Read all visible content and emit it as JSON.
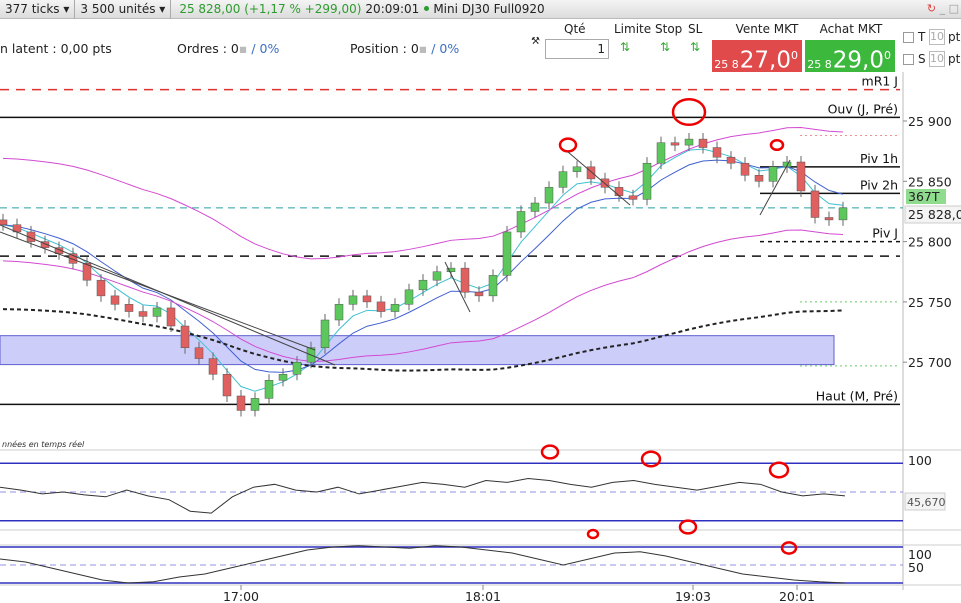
{
  "topbar": {
    "ticks": "377 ticks",
    "units": "3 500 unités",
    "quote": "25 828,00 (+1,17 % +299,00)",
    "time": "20:09:01",
    "instrument": "Mini DJ30 Full0920"
  },
  "infobar": {
    "latent": "n latent :  0,00 pts",
    "orders": "Ordres : 0",
    "orders_pct": "/ 0%",
    "position": "Position : 0",
    "position_pct": "/ 0%",
    "qty_label": "Qté",
    "qty_value": "1",
    "limit_label": "Limite",
    "stop_label": "Stop",
    "sl_label": "SL",
    "sell_label": "Vente MKT",
    "sell_prefix": "25 8",
    "sell_big": "27,0",
    "sell_sup": "0",
    "buy_label": "Achat MKT",
    "buy_prefix": "25 8",
    "buy_big": "29,0",
    "buy_sup": "0",
    "t_label": "T",
    "s_label": "S",
    "t_value": "10",
    "s_value": "10",
    "pts": "pt"
  },
  "colors": {
    "up": "#5cc85c",
    "down": "#e06060",
    "sell": "#e04a4a",
    "buy": "#3cb83c",
    "ma_pink": "#d24ad2",
    "ma_blue": "#4060d0",
    "ma_cyan": "#40c0d0",
    "zone": "#b8b8f8",
    "current": "#2aa0a0"
  },
  "chart_data": [
    {
      "type": "candlestick",
      "ylim": [
        25640,
        25955
      ],
      "y_ticks": [
        "25 900",
        "25 850",
        "25 800",
        "25 750",
        "25 700"
      ],
      "y_tick_values": [
        25900,
        25850,
        25800,
        25750,
        25700
      ],
      "x_ticks": [
        "17:00",
        "18:01",
        "19:03",
        "20:01"
      ],
      "closes": [
        25814,
        25808,
        25800,
        25795,
        25790,
        25782,
        25768,
        25755,
        25748,
        25742,
        25738,
        25745,
        25730,
        25712,
        25703,
        25690,
        25672,
        25660,
        25670,
        25685,
        25690,
        25700,
        25712,
        25735,
        25748,
        25755,
        25750,
        25742,
        25748,
        25760,
        25768,
        25775,
        25778,
        25758,
        25755,
        25772,
        25808,
        25825,
        25832,
        25845,
        25858,
        25862,
        25852,
        25845,
        25838,
        25835,
        25865,
        25882,
        25880,
        25885,
        25878,
        25870,
        25865,
        25855,
        25850,
        25862,
        25866,
        25842,
        25820,
        25818,
        25828
      ],
      "levels": [
        {
          "label": "mR1 J",
          "value": 25926,
          "color": "#e03030",
          "style": "dash"
        },
        {
          "label": "Ouv (J, Pré)",
          "value": 25903,
          "color": "#111",
          "style": "solid"
        },
        {
          "label": "Piv 1h",
          "value": 25862,
          "color": "#111",
          "style": "solid"
        },
        {
          "label": "Piv 2h",
          "value": 25840,
          "color": "#111",
          "style": "solid"
        },
        {
          "label": "Piv J",
          "value": 25800,
          "color": "#111",
          "style": "dot"
        },
        {
          "label": "",
          "value": 25788,
          "color": "#111",
          "style": "dash"
        },
        {
          "label": "Haut (M, Pré)",
          "value": 25665,
          "color": "#111",
          "style": "solid"
        }
      ],
      "zone": [
        25698,
        25722
      ],
      "current_price": "25 828,0",
      "current_value": 25828,
      "tick_badge": "367T",
      "note": "nnées en temps réel"
    },
    {
      "type": "line",
      "name": "",
      "ylim": [
        0,
        100
      ],
      "y_ticks": [
        "100"
      ],
      "value_label": "45,670",
      "values": [
        55,
        52,
        48,
        50,
        47,
        45,
        52,
        46,
        42,
        30,
        28,
        45,
        55,
        58,
        52,
        50,
        55,
        48,
        52,
        56,
        60,
        58,
        55,
        62,
        60,
        64,
        62,
        58,
        55,
        60,
        62,
        58,
        55,
        52,
        56,
        60,
        58,
        50,
        46,
        48,
        46
      ]
    },
    {
      "type": "line",
      "name": "",
      "ylim": [
        0,
        100
      ],
      "y_ticks": [
        "100",
        "50"
      ],
      "values": [
        60,
        55,
        45,
        35,
        25,
        20,
        22,
        30,
        35,
        45,
        55,
        65,
        75,
        80,
        82,
        80,
        78,
        82,
        80,
        75,
        70,
        60,
        50,
        60,
        70,
        72,
        65,
        55,
        45,
        35,
        30,
        25,
        22,
        20
      ]
    }
  ]
}
